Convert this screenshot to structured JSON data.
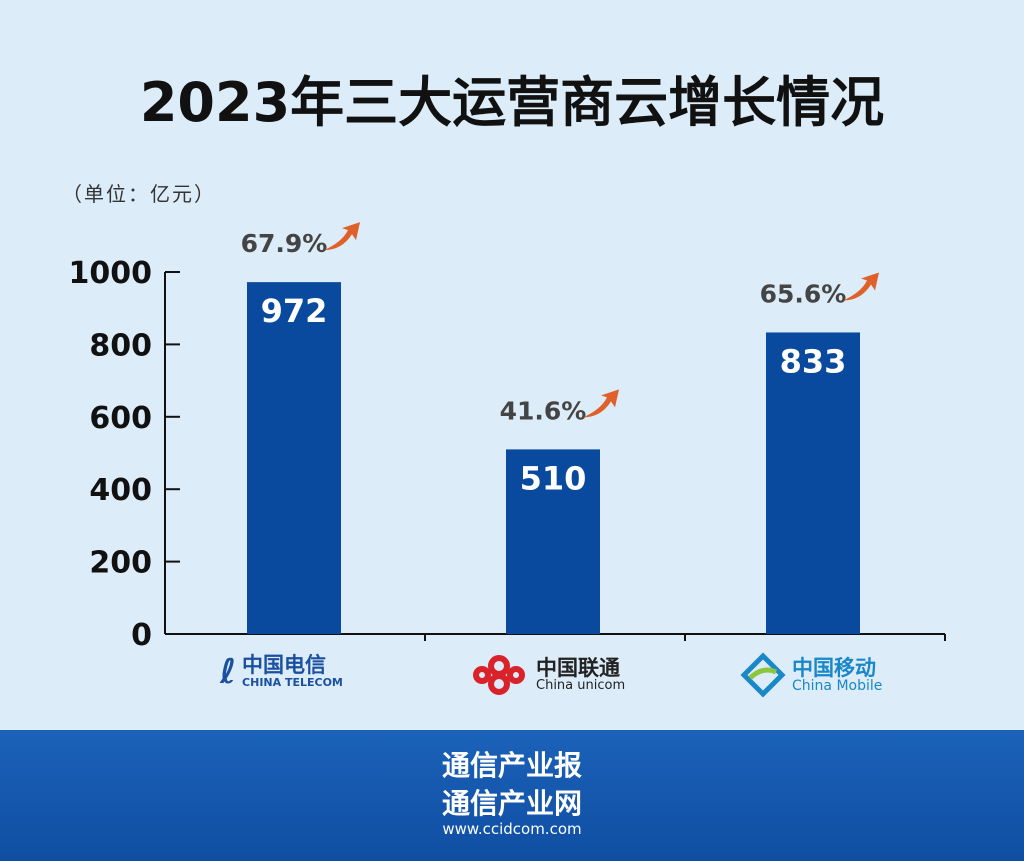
{
  "chart_data": {
    "type": "bar",
    "title": "2023年三大运营商云增长情况",
    "unit": "（单位：亿元）",
    "categories": [
      "中国电信",
      "中国联通",
      "中国移动"
    ],
    "values": [
      972,
      510,
      833
    ],
    "growth": [
      "67.9%",
      "41.6%",
      "65.6%"
    ],
    "ylim": [
      0,
      1000
    ],
    "yticks": [
      "0",
      "200",
      "400",
      "600",
      "800",
      "1000"
    ],
    "grid": false,
    "bar_color": "#0a4a9e",
    "arrow_color": "#e0602a"
  },
  "logos": [
    {
      "cn": "中国电信",
      "en": "CHINA TELECOM",
      "color": "#1b4fa0"
    },
    {
      "cn": "中国联通",
      "en": "China unicom",
      "color": "#222",
      "mark_color": "#d9222a"
    },
    {
      "cn": "中国移动",
      "en": "China Mobile",
      "color": "#1a87c9"
    }
  ],
  "footer": {
    "line1": "通信产业报",
    "line2": "通信产业网",
    "url": "www.ccidcom.com"
  }
}
